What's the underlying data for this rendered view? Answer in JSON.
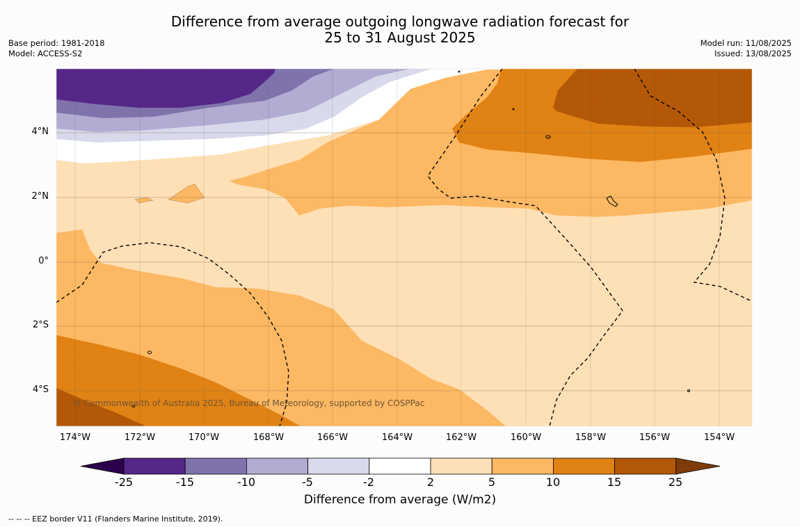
{
  "title": {
    "line1": "Difference from average outgoing longwave radiation forecast for",
    "line2": "25 to 31 August 2025"
  },
  "meta_left": {
    "base_period": "Base period: 1981-2018",
    "model": "Model: ACCESS-S2"
  },
  "meta_right": {
    "model_run": "Model run: 11/08/2025",
    "issued": "Issued: 13/08/2025"
  },
  "map": {
    "lat_labels": [
      "4°N",
      "2°N",
      "0°",
      "2°S",
      "4°S"
    ],
    "lon_labels": [
      "174°W",
      "172°W",
      "170°W",
      "168°W",
      "166°W",
      "164°W",
      "162°W",
      "160°W",
      "158°W",
      "156°W",
      "154°W"
    ],
    "credit": "© Commonwealth of Australia 2025, Bureau of Meteorology, supported by COSPPac"
  },
  "colorbar": {
    "ticks": [
      "-25",
      "-15",
      "-10",
      "-5",
      "-2",
      "2",
      "5",
      "10",
      "15",
      "25"
    ],
    "colors": [
      "#542788",
      "#8073ac",
      "#b2abd2",
      "#d8daeb",
      "#ffffff",
      "#fee0b6",
      "#fdb863",
      "#e08214",
      "#b35806"
    ],
    "under_color": "#2d004b",
    "over_color": "#7f3b08",
    "title": "Difference from average (W/m2)"
  },
  "footnote": "--  --  -- EEZ border V11 (Flanders Marine Institute, 2019)."
}
